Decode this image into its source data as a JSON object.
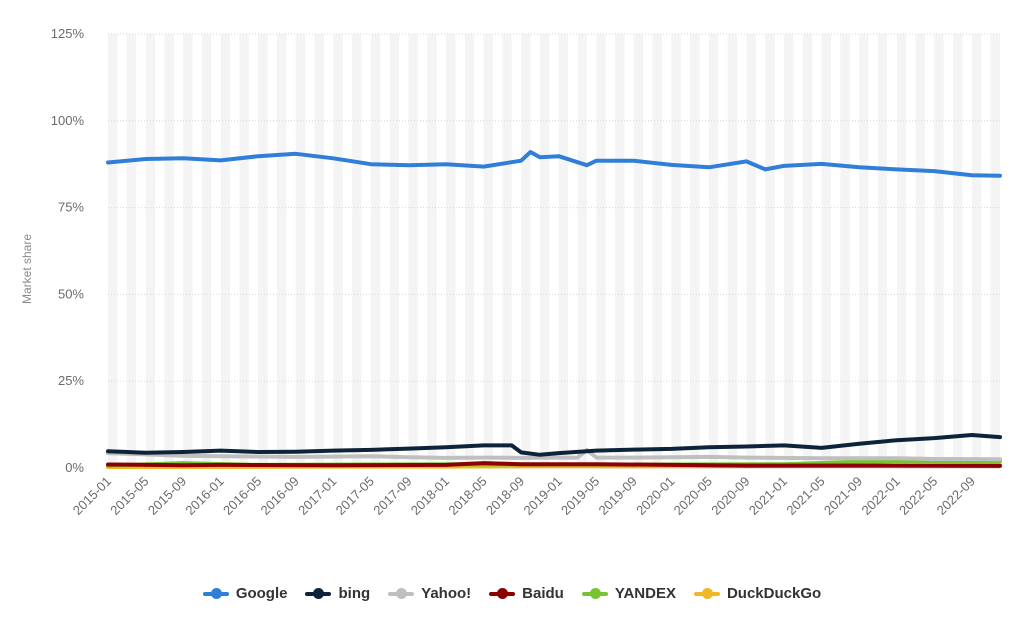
{
  "chart_data": {
    "type": "line",
    "ylabel": "Market share",
    "xlabel": "",
    "ylim": [
      0,
      125
    ],
    "yticks": [
      "0%",
      "25%",
      "50%",
      "75%",
      "100%",
      "125%"
    ],
    "ytick_values": [
      0,
      25,
      50,
      75,
      100,
      125
    ],
    "x_tick_labels": [
      "2015-01",
      "2015-05",
      "2015-09",
      "2016-01",
      "2016-05",
      "2016-09",
      "2017-01",
      "2017-05",
      "2017-09",
      "2018-01",
      "2018-05",
      "2018-09",
      "2019-01",
      "2019-05",
      "2019-09",
      "2020-01",
      "2020-05",
      "2020-09",
      "2021-01",
      "2021-05",
      "2021-09",
      "2022-01",
      "2022-05",
      "2022-09"
    ],
    "x_range": [
      "2015-01",
      "2022-12"
    ],
    "grid": "horizontal dashed, alternating vertical bands",
    "legend_position": "bottom-center",
    "series": [
      {
        "name": "Google",
        "color": "#2f7ed8",
        "x": [
          "2015-01",
          "2015-05",
          "2015-09",
          "2016-01",
          "2016-05",
          "2016-09",
          "2017-01",
          "2017-05",
          "2017-09",
          "2018-01",
          "2018-05",
          "2018-09",
          "2018-10",
          "2018-11",
          "2019-01",
          "2019-04",
          "2019-05",
          "2019-09",
          "2020-01",
          "2020-05",
          "2020-09",
          "2020-11",
          "2021-01",
          "2021-05",
          "2021-09",
          "2022-01",
          "2022-05",
          "2022-09",
          "2022-12"
        ],
        "values": [
          88.0,
          89.0,
          89.2,
          88.6,
          89.8,
          90.5,
          89.2,
          87.5,
          87.2,
          87.5,
          86.8,
          88.5,
          91.0,
          89.5,
          89.8,
          87.2,
          88.5,
          88.5,
          87.3,
          86.6,
          88.3,
          86.0,
          87.0,
          87.6,
          86.6,
          86.0,
          85.5,
          84.3,
          84.2
        ]
      },
      {
        "name": "bing",
        "color": "#0d233a",
        "x": [
          "2015-01",
          "2015-05",
          "2015-09",
          "2016-01",
          "2016-05",
          "2016-09",
          "2017-01",
          "2017-05",
          "2017-09",
          "2018-01",
          "2018-05",
          "2018-08",
          "2018-09",
          "2018-11",
          "2019-01",
          "2019-05",
          "2019-09",
          "2020-01",
          "2020-05",
          "2020-09",
          "2021-01",
          "2021-05",
          "2021-09",
          "2022-01",
          "2022-05",
          "2022-09",
          "2022-12"
        ],
        "values": [
          4.8,
          4.4,
          4.6,
          5.0,
          4.6,
          4.7,
          5.0,
          5.2,
          5.6,
          6.0,
          6.5,
          6.5,
          4.5,
          3.8,
          4.3,
          5.0,
          5.3,
          5.5,
          6.0,
          6.2,
          6.5,
          5.8,
          7.0,
          8.0,
          8.6,
          9.5,
          8.9
        ]
      },
      {
        "name": "Yahoo!",
        "color": "#bfbfbf",
        "x": [
          "2015-01",
          "2015-09",
          "2016-01",
          "2016-09",
          "2017-05",
          "2017-09",
          "2018-01",
          "2018-05",
          "2018-09",
          "2019-01",
          "2019-03",
          "2019-04",
          "2019-05",
          "2019-09",
          "2020-05",
          "2020-09",
          "2021-05",
          "2022-01",
          "2022-05",
          "2022-12"
        ],
        "values": [
          4.3,
          3.5,
          3.4,
          3.2,
          3.4,
          3.1,
          2.9,
          3.0,
          2.9,
          3.0,
          3.0,
          5.2,
          3.0,
          3.0,
          3.2,
          3.0,
          2.8,
          2.8,
          2.6,
          2.5
        ]
      },
      {
        "name": "Baidu",
        "color": "#8b0000",
        "x": [
          "2015-01",
          "2015-09",
          "2016-01",
          "2017-01",
          "2018-01",
          "2018-05",
          "2018-09",
          "2019-05",
          "2020-01",
          "2020-09",
          "2021-09",
          "2022-12"
        ],
        "values": [
          1.0,
          0.8,
          0.9,
          0.8,
          0.9,
          1.4,
          1.1,
          1.1,
          0.9,
          0.7,
          0.7,
          0.6
        ]
      },
      {
        "name": "YANDEX",
        "color": "#77c42e",
        "x": [
          "2015-01",
          "2015-09",
          "2016-05",
          "2017-05",
          "2018-01",
          "2019-01",
          "2020-01",
          "2021-01",
          "2021-09",
          "2022-01",
          "2022-12"
        ],
        "values": [
          0.7,
          1.4,
          0.9,
          1.0,
          1.1,
          1.0,
          1.0,
          1.1,
          1.8,
          2.0,
          1.9
        ]
      },
      {
        "name": "DuckDuckGo",
        "color": "#f1b825",
        "x": [
          "2015-01",
          "2016-01",
          "2017-01",
          "2018-01",
          "2019-01",
          "2020-01",
          "2021-01",
          "2021-09",
          "2022-05",
          "2022-12"
        ],
        "values": [
          0.3,
          0.3,
          0.4,
          0.4,
          0.5,
          0.5,
          0.6,
          0.7,
          0.7,
          0.8
        ]
      }
    ]
  }
}
